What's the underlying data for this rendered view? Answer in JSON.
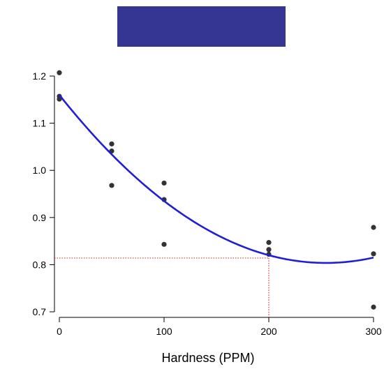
{
  "chart_data": {
    "type": "scatter",
    "title": "",
    "xlabel": "Hardness (PPM)",
    "ylabel": "",
    "xlim": [
      -5,
      305
    ],
    "ylim": [
      0.695,
      1.225
    ],
    "x_ticks": [
      0,
      100,
      200,
      300
    ],
    "x_tick_labels": [
      "0",
      "100",
      "200",
      "300"
    ],
    "y_ticks": [
      0.7,
      0.8,
      0.9,
      1.0,
      1.1,
      1.2
    ],
    "y_tick_labels": [
      "0.7",
      "0.8",
      "0.9",
      "1.0",
      "1.1",
      "1.2"
    ],
    "grid": false,
    "points": {
      "x": [
        0,
        0,
        0,
        50,
        50,
        50,
        100,
        100,
        100,
        200,
        200,
        200,
        300,
        300,
        300
      ],
      "y": [
        1.207,
        1.157,
        1.151,
        1.056,
        1.041,
        0.968,
        0.973,
        0.938,
        0.843,
        0.847,
        0.832,
        0.822,
        0.879,
        0.823,
        0.71
      ],
      "color": "#333333"
    },
    "fit_curve": {
      "type": "quadratic",
      "coefficients": [
        1.16,
        -0.0028,
        5.5e-06
      ],
      "color": "#1f1fd6"
    },
    "reference": {
      "x": 200,
      "y": 0.814,
      "color": "#e8302a"
    },
    "banner_color": "#353594"
  }
}
